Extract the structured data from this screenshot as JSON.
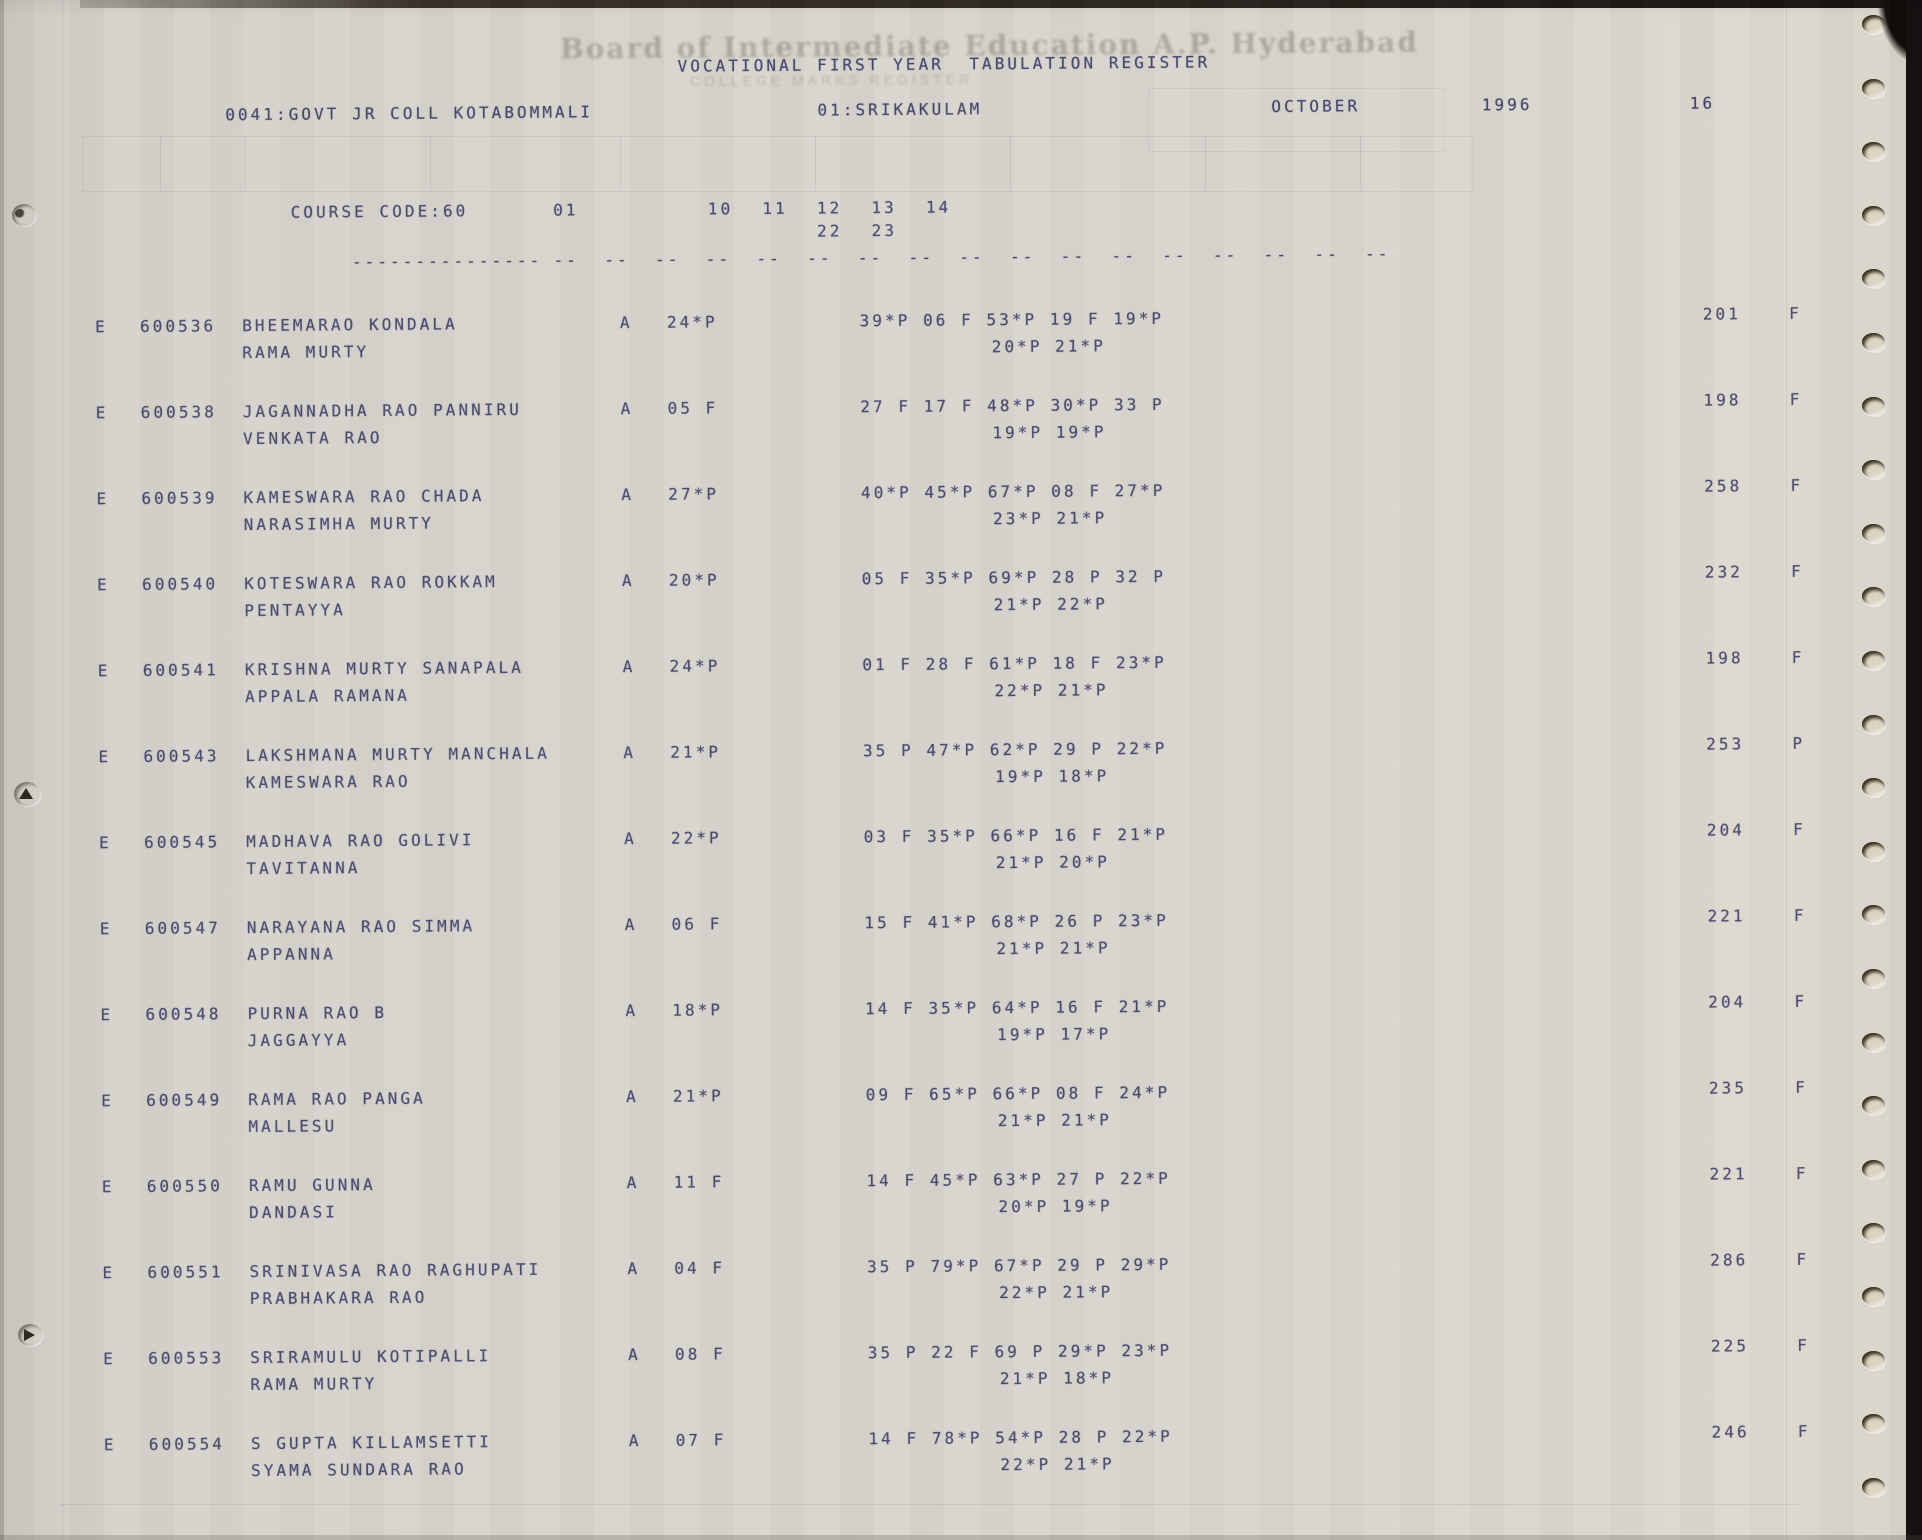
{
  "document": {
    "title": "VOCATIONAL FIRST YEAR  TABULATION REGISTER",
    "college": "0041:GOVT JR COLL KOTABOMMALI",
    "district": "01:SRIKAKULAM",
    "month": "OCTOBER",
    "year": "1996",
    "page_number": "16"
  },
  "table": {
    "course_code_label": "COURSE CODE:60",
    "attendance_column": "01",
    "subject_columns_row1": [
      "10",
      "11",
      "12",
      "13",
      "14"
    ],
    "subject_columns_row2": [
      "22",
      "23"
    ],
    "ruling": {
      "course_dashes": "---------------",
      "column_dash": "--",
      "column_dash_count": 17
    }
  },
  "students": [
    {
      "type": "E",
      "adm_no": "600536",
      "name": "BHEEMARAO KONDALA",
      "father_name": "RAMA MURTY",
      "att_code": "A",
      "attendance": "24*P",
      "marks1": "39*P 06 F 53*P 19 F 19*P",
      "marks2": "20*P 21*P",
      "total": "201",
      "result": "F"
    },
    {
      "type": "E",
      "adm_no": "600538",
      "name": "JAGANNADHA RAO PANNIRU",
      "father_name": "VENKATA RAO",
      "att_code": "A",
      "attendance": "05 F",
      "marks1": "27 F 17 F 48*P 30*P 33 P",
      "marks2": "19*P 19*P",
      "total": "198",
      "result": "F"
    },
    {
      "type": "E",
      "adm_no": "600539",
      "name": "KAMESWARA RAO CHADA",
      "father_name": "NARASIMHA MURTY",
      "att_code": "A",
      "attendance": "27*P",
      "marks1": "40*P 45*P 67*P 08 F 27*P",
      "marks2": "23*P 21*P",
      "total": "258",
      "result": "F"
    },
    {
      "type": "E",
      "adm_no": "600540",
      "name": "KOTESWARA RAO ROKKAM",
      "father_name": "PENTAYYA",
      "att_code": "A",
      "attendance": "20*P",
      "marks1": "05 F 35*P 69*P 28 P 32 P",
      "marks2": "21*P 22*P",
      "total": "232",
      "result": "F"
    },
    {
      "type": "E",
      "adm_no": "600541",
      "name": "KRISHNA MURTY SANAPALA",
      "father_name": "APPALA RAMANA",
      "att_code": "A",
      "attendance": "24*P",
      "marks1": "01 F 28 F 61*P 18 F 23*P",
      "marks2": "22*P 21*P",
      "total": "198",
      "result": "F"
    },
    {
      "type": "E",
      "adm_no": "600543",
      "name": "LAKSHMANA MURTY MANCHALA",
      "father_name": "KAMESWARA RAO",
      "att_code": "A",
      "attendance": "21*P",
      "marks1": "35 P 47*P 62*P 29 P 22*P",
      "marks2": "19*P 18*P",
      "total": "253",
      "result": "P"
    },
    {
      "type": "E",
      "adm_no": "600545",
      "name": "MADHAVA RAO GOLIVI",
      "father_name": "TAVITANNA",
      "att_code": "A",
      "attendance": "22*P",
      "marks1": "03 F 35*P 66*P 16 F 21*P",
      "marks2": "21*P 20*P",
      "total": "204",
      "result": "F"
    },
    {
      "type": "E",
      "adm_no": "600547",
      "name": "NARAYANA RAO SIMMA",
      "father_name": "APPANNA",
      "att_code": "A",
      "attendance": "06 F",
      "marks1": "15 F 41*P 68*P 26 P 23*P",
      "marks2": "21*P 21*P",
      "total": "221",
      "result": "F"
    },
    {
      "type": "E",
      "adm_no": "600548",
      "name": "PURNA RAO B",
      "father_name": "JAGGAYYA",
      "att_code": "A",
      "attendance": "18*P",
      "marks1": "14 F 35*P 64*P 16 F 21*P",
      "marks2": "19*P 17*P",
      "total": "204",
      "result": "F"
    },
    {
      "type": "E",
      "adm_no": "600549",
      "name": "RAMA RAO PANGA",
      "father_name": "MALLESU",
      "att_code": "A",
      "attendance": "21*P",
      "marks1": "09 F 65*P 66*P 08 F 24*P",
      "marks2": "21*P 21*P",
      "total": "235",
      "result": "F"
    },
    {
      "type": "E",
      "adm_no": "600550",
      "name": "RAMU GUNNA",
      "father_name": "DANDASI",
      "att_code": "A",
      "attendance": "11 F",
      "marks1": "14 F 45*P 63*P 27 P 22*P",
      "marks2": "20*P 19*P",
      "total": "221",
      "result": "F"
    },
    {
      "type": "E",
      "adm_no": "600551",
      "name": "SRINIVASA RAO RAGHUPATI",
      "father_name": "PRABHAKARA RAO",
      "att_code": "A",
      "attendance": "04 F",
      "marks1": "35 P 79*P 67*P 29 P 29*P",
      "marks2": "22*P 21*P",
      "total": "286",
      "result": "F"
    },
    {
      "type": "E",
      "adm_no": "600553",
      "name": "SRIRAMULU KOTIPALLI",
      "father_name": "RAMA MURTY",
      "att_code": "A",
      "attendance": "08 F",
      "marks1": "35 P 22 F 69 P 29*P 23*P",
      "marks2": "21*P 18*P",
      "total": "225",
      "result": "F"
    },
    {
      "type": "E",
      "adm_no": "600554",
      "name": "S GUPTA KILLAMSETTI",
      "father_name": "SYAMA SUNDARA RAO",
      "att_code": "A",
      "attendance": "07 F",
      "marks1": "14 F 78*P 54*P 28 P 22*P",
      "marks2": "22*P 21*P",
      "total": "246",
      "result": "F"
    }
  ],
  "ghost_showthrough": {
    "line1": "Board of Intermediate Education A.P. Hyderabad",
    "line2": "COLLEGE MARKS REGISTER"
  },
  "colors": {
    "ink": "#40406a",
    "paper": "#d7d5cd"
  }
}
